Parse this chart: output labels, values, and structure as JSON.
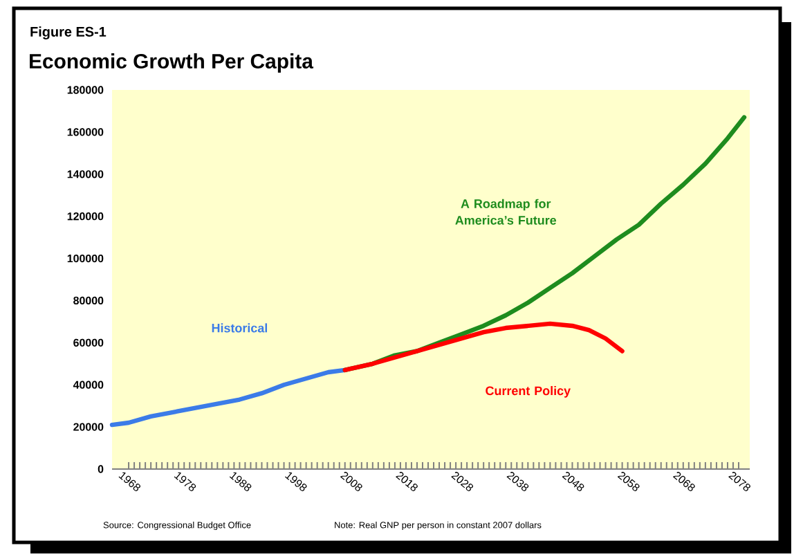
{
  "chart_data": {
    "type": "line",
    "title": "Economic Growth Per Capita",
    "annotations": [
      "Figure ES-1",
      "Source:  Congressional Budget Office",
      "Note:  Real GNP per person in constant 2007 dollars"
    ],
    "xlim": [
      1965,
      2080
    ],
    "xticks": [
      1968,
      1978,
      1988,
      1998,
      2008,
      2018,
      2028,
      2038,
      2048,
      2058,
      2068,
      2078
    ],
    "ylim": [
      0,
      180000
    ],
    "yticks": [
      0,
      20000,
      40000,
      60000,
      80000,
      100000,
      120000,
      140000,
      160000,
      180000
    ],
    "grid": false,
    "legend": false,
    "marker": "none",
    "line_style": "solid",
    "series": [
      {
        "name": "Historical",
        "color": "#3b7be8",
        "x": [
          1965,
          1968,
          1972,
          1976,
          1980,
          1984,
          1988,
          1992,
          1996,
          2000,
          2004,
          2007
        ],
        "values": [
          21000,
          22000,
          25000,
          27000,
          29000,
          31000,
          33000,
          36000,
          40000,
          43000,
          46000,
          47000
        ]
      },
      {
        "name": "A Roadmap for America’s Future",
        "color": "#1e8c1e",
        "x": [
          2007,
          2012,
          2016,
          2020,
          2024,
          2028,
          2032,
          2036,
          2040,
          2044,
          2048,
          2052,
          2056,
          2060,
          2064,
          2068,
          2072,
          2076,
          2079
        ],
        "values": [
          47000,
          50000,
          54000,
          56000,
          60000,
          64000,
          68000,
          73000,
          79000,
          86000,
          93000,
          101000,
          109000,
          116000,
          126000,
          135000,
          145000,
          157000,
          167000
        ]
      },
      {
        "name": "Current Policy",
        "color": "#ff0000",
        "x": [
          2007,
          2012,
          2016,
          2020,
          2024,
          2028,
          2032,
          2036,
          2040,
          2044,
          2048,
          2051,
          2054,
          2057
        ],
        "values": [
          47000,
          50000,
          53000,
          56000,
          59000,
          62000,
          65000,
          67000,
          68000,
          69000,
          68000,
          66000,
          62000,
          56000
        ]
      }
    ]
  }
}
